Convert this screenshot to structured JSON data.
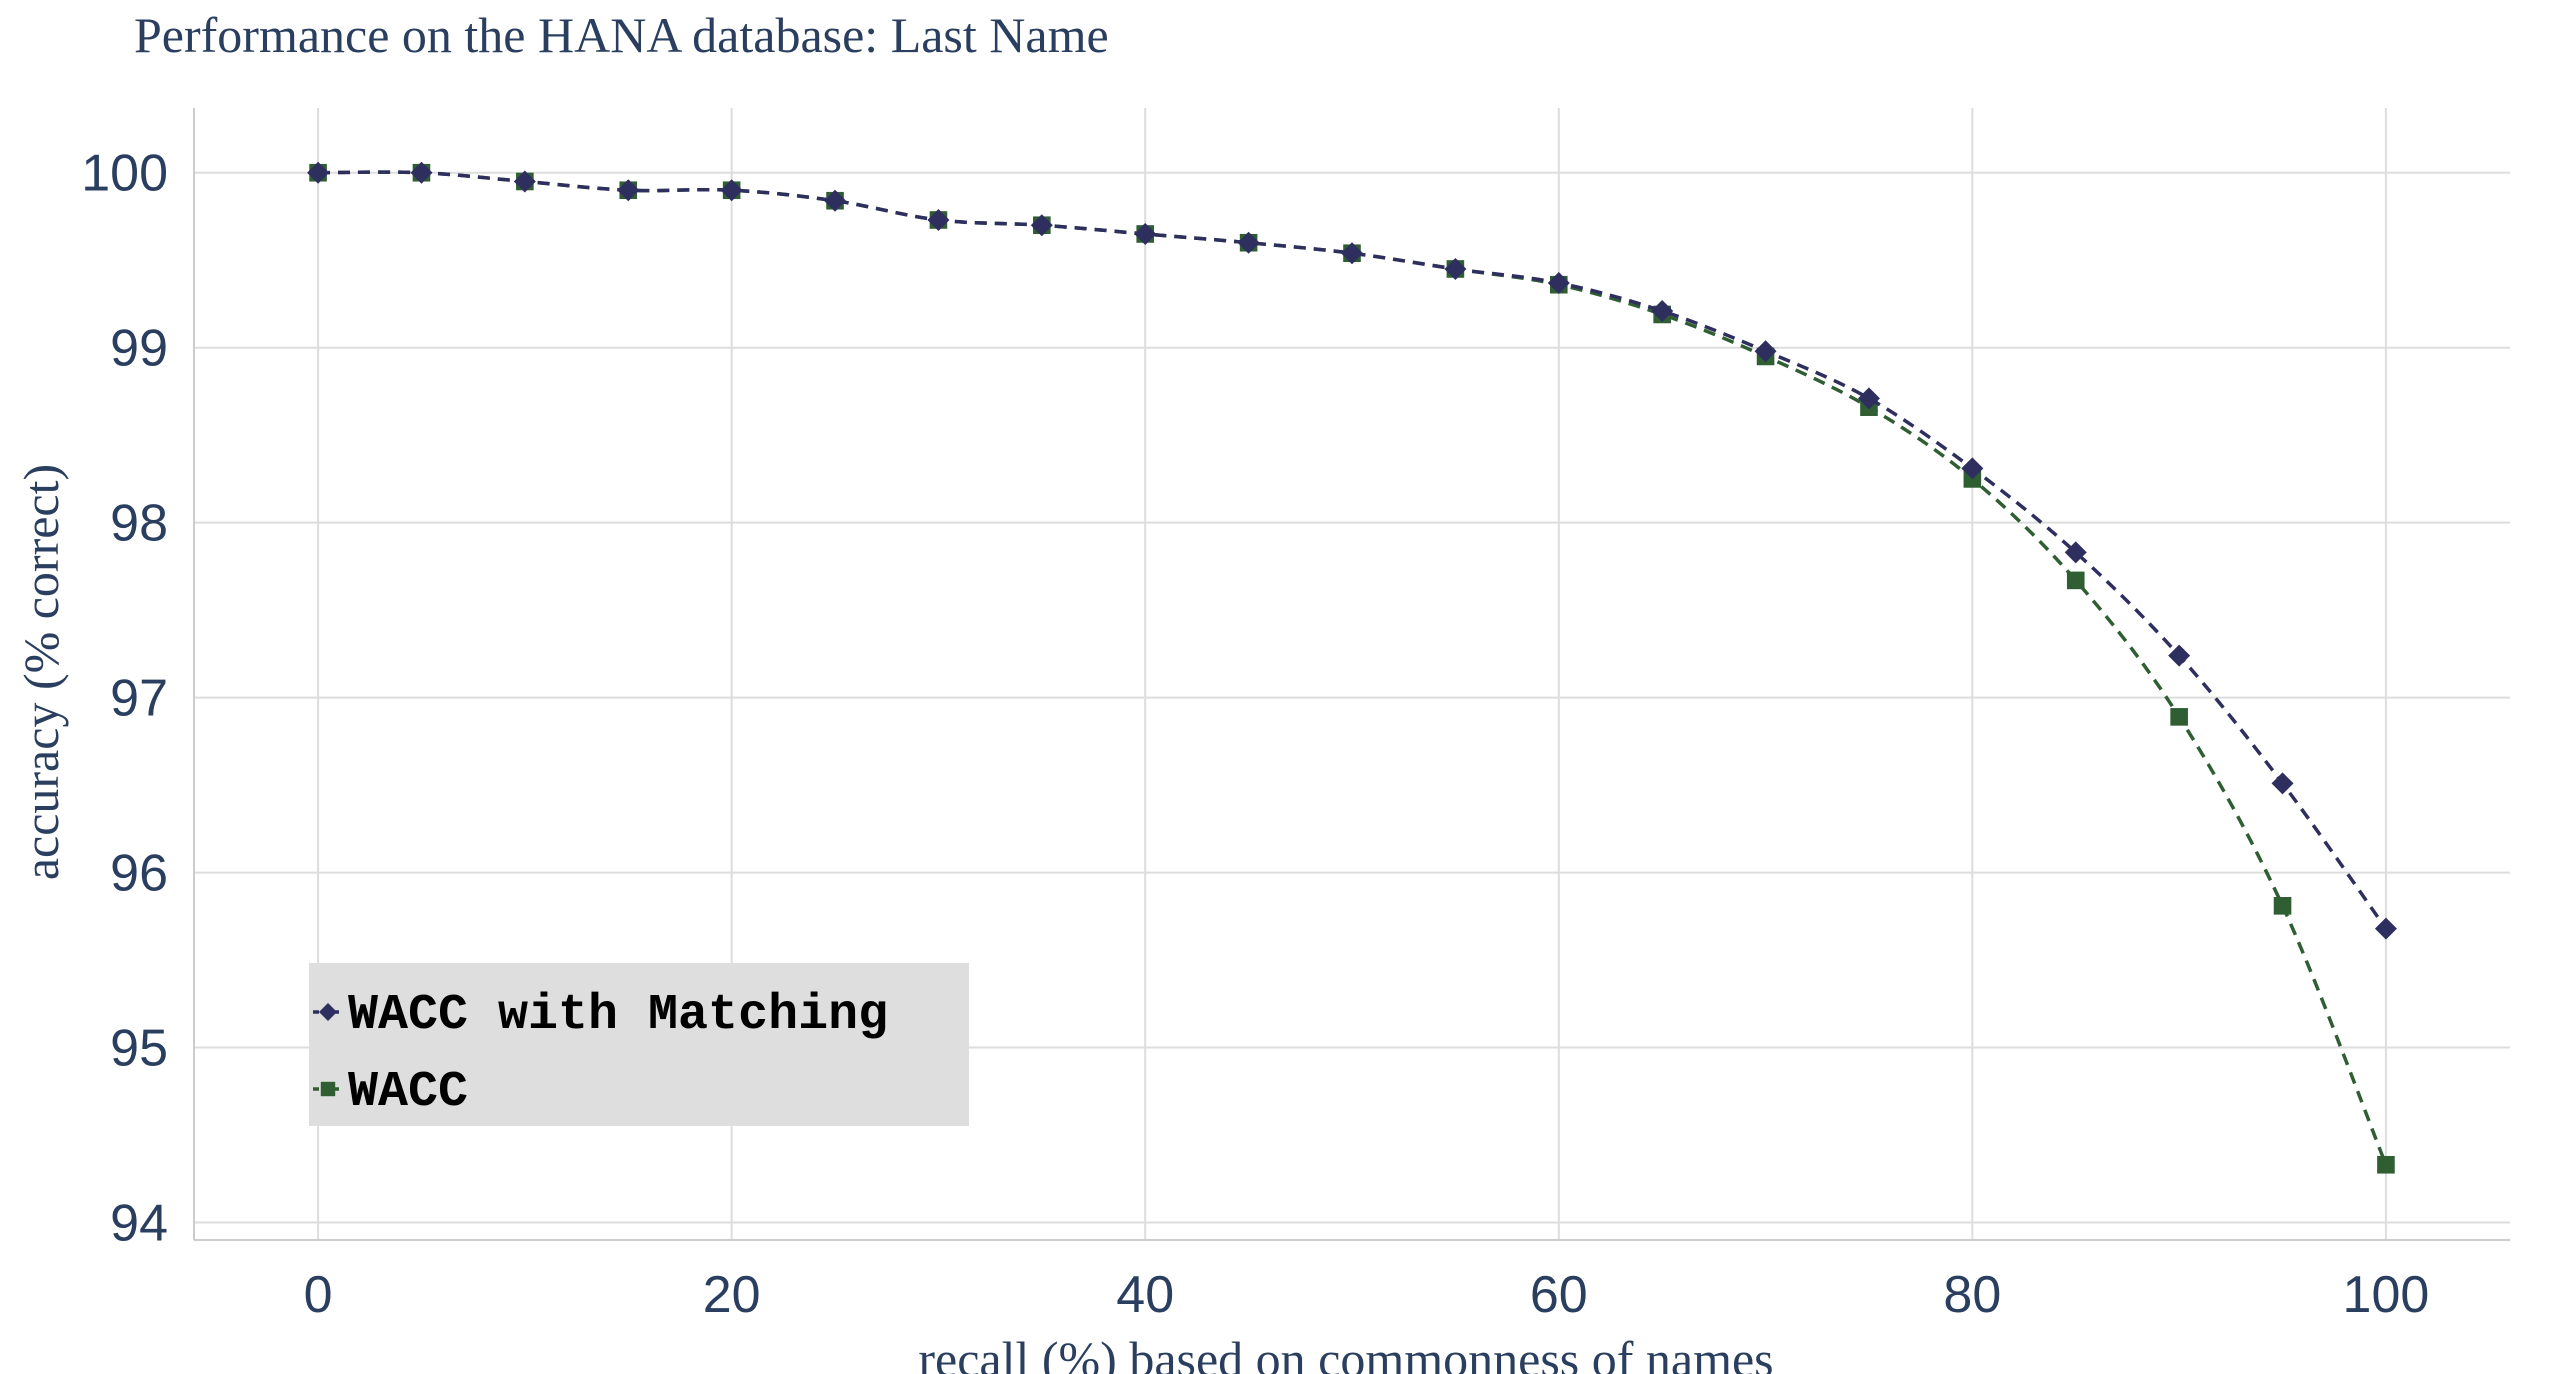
{
  "chart_data": {
    "type": "line",
    "title": "Performance on the HANA database: Last Name",
    "xlabel": "recall (%) based on commonness of names",
    "ylabel": "accuracy (% correct)",
    "xlim": [
      -6,
      106
    ],
    "ylim": [
      93.9,
      100.37
    ],
    "x_ticks": [
      0,
      20,
      40,
      60,
      80,
      100
    ],
    "y_ticks": [
      94,
      95,
      96,
      97,
      98,
      99,
      100
    ],
    "x_tick_labels": [
      "0",
      "20",
      "40",
      "60",
      "80",
      "100"
    ],
    "y_tick_labels": [
      "94",
      "95",
      "96",
      "97",
      "98",
      "99",
      "100"
    ],
    "grid": true,
    "legend_position": "bottom-left",
    "x": [
      0,
      5,
      10,
      15,
      20,
      25,
      30,
      35,
      40,
      45,
      50,
      55,
      60,
      65,
      70,
      75,
      80,
      85,
      90,
      95,
      100
    ],
    "series": [
      {
        "name": "WACC with Matching",
        "color": "#2e2f5e",
        "marker": "diamond",
        "line_style": "dashed",
        "values": [
          100.0,
          100.0,
          99.95,
          99.9,
          99.9,
          99.84,
          99.73,
          99.7,
          99.65,
          99.6,
          99.54,
          99.45,
          99.37,
          99.21,
          98.98,
          98.71,
          98.31,
          97.83,
          97.24,
          96.51,
          95.68
        ]
      },
      {
        "name": "WACC",
        "color": "#2f5e33",
        "marker": "square",
        "line_style": "dashed",
        "values": [
          100.0,
          100.0,
          99.95,
          99.9,
          99.9,
          99.84,
          99.73,
          99.7,
          99.65,
          99.6,
          99.54,
          99.45,
          99.36,
          99.19,
          98.95,
          98.66,
          98.25,
          97.67,
          96.89,
          95.81,
          94.33
        ]
      }
    ]
  },
  "colors": {
    "axis_text": "#2a3f5f",
    "grid": "#dddddd",
    "legend_bg": "#dedede"
  }
}
